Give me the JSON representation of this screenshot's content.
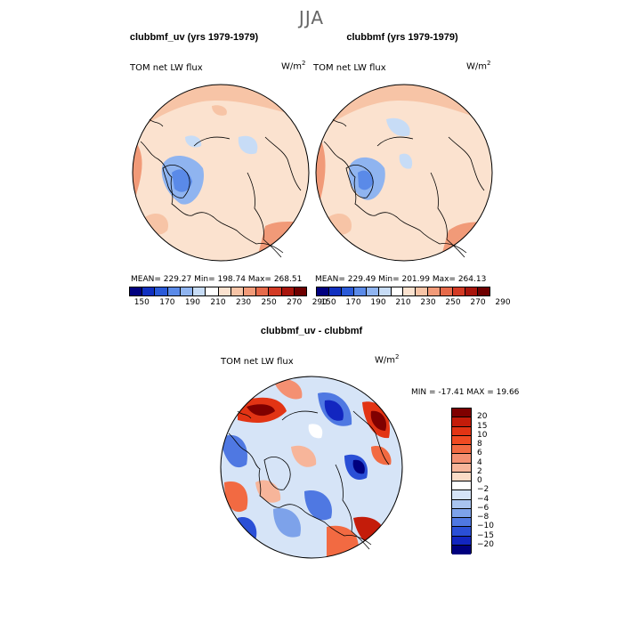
{
  "season": "JJA",
  "panels": {
    "left": {
      "title": "clubbmf_uv (yrs 1979-1979)",
      "variable": "TOM net LW flux",
      "unit_base": "W/m",
      "unit_exp": "2",
      "stats": "MEAN= 229.27   Min= 198.74   Max= 268.51"
    },
    "right": {
      "title": "clubbmf (yrs 1979-1979)",
      "variable": "TOM net LW flux",
      "unit_base": "W/m",
      "unit_exp": "2",
      "stats": "MEAN= 229.49   Min= 201.99   Max= 264.13"
    },
    "diff": {
      "title": "clubbmf_uv - clubbmf",
      "variable": "TOM net LW flux",
      "unit_base": "W/m",
      "unit_exp": "2",
      "stats": "MIN = -17.41  MAX =  19.66"
    }
  },
  "colorbar_top": {
    "labels": [
      "150",
      "170",
      "190",
      "210",
      "230",
      "250",
      "270",
      "290"
    ],
    "colors": [
      "#00007f",
      "#1030c0",
      "#2a5ad8",
      "#5a8ae8",
      "#8fb4f0",
      "#c7dcf6",
      "#ffffff",
      "#fbe2cf",
      "#f7c4a6",
      "#f19a78",
      "#e66a4a",
      "#d33a24",
      "#a8150c",
      "#6e0000"
    ]
  },
  "colorbar_diff": {
    "labels": [
      "20",
      "15",
      "10",
      "8",
      "6",
      "4",
      "2",
      "0",
      "−2",
      "−4",
      "−6",
      "−8",
      "−10",
      "−15",
      "−20"
    ],
    "colors": [
      "#7f0000",
      "#c41c0a",
      "#e23414",
      "#f04a22",
      "#f26a42",
      "#f49072",
      "#f7b59a",
      "#fbdcc6",
      "#ffffff",
      "#d6e4f7",
      "#a9c4ef",
      "#7da2ea",
      "#4f78e2",
      "#2a4fd6",
      "#1226c0",
      "#00007f"
    ]
  }
}
